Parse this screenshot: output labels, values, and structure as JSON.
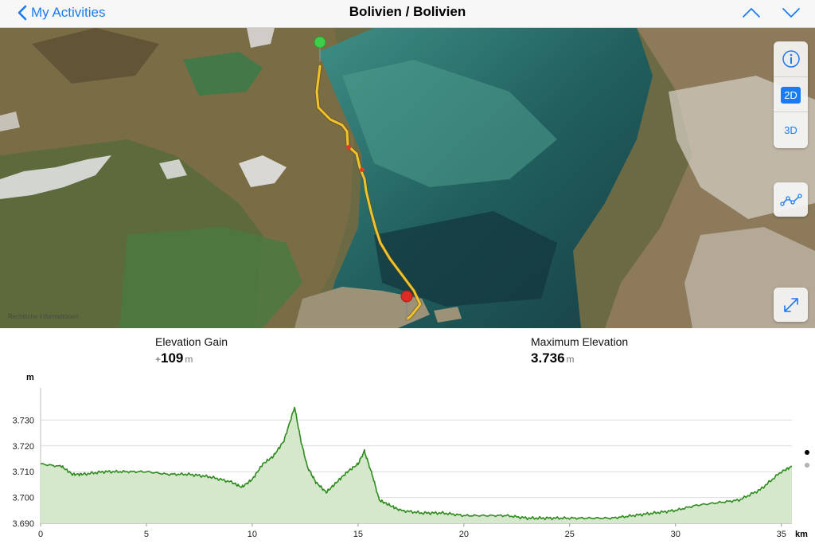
{
  "nav": {
    "back_label": "My Activities",
    "title": "Bolivien / Bolivien"
  },
  "map": {
    "legal_text": "Rechtliche Informationen",
    "buttons": {
      "info_icon": "info-icon",
      "mode_2d": "2D",
      "mode_3d": "3D",
      "profile_icon": "route-profile-icon",
      "expand_icon": "expand-icon"
    },
    "route_color": "#f2c12e",
    "start_pin_color": "#3ecf4a",
    "end_pin_color": "#e02b24"
  },
  "stats": {
    "elevation_gain": {
      "label": "Elevation Gain",
      "prefix": "+",
      "value": "109",
      "unit": "m"
    },
    "max_elevation": {
      "label": "Maximum Elevation",
      "value": "3.736",
      "unit": "m"
    }
  },
  "chart_data": {
    "type": "area",
    "title": "",
    "xlabel": "km",
    "ylabel": "m",
    "xlim": [
      0,
      35.5
    ],
    "ylim": [
      3690,
      3740
    ],
    "x_ticks": [
      "0",
      "5",
      "10",
      "15",
      "20",
      "25",
      "30",
      "35"
    ],
    "y_ticks": [
      "3.690",
      "3.700",
      "3.710",
      "3.720",
      "3.730"
    ],
    "grid": true,
    "line_color": "#2e8b1e",
    "fill_color": "#d5e8cc",
    "series": [
      {
        "x": [
          0,
          1,
          1.5,
          2,
          3,
          4,
          5,
          6,
          7,
          8,
          9,
          9.5,
          10,
          10.5,
          11,
          11.5,
          12,
          12.3,
          12.6,
          13,
          13.5,
          14,
          14.5,
          15,
          15.3,
          15.7,
          16,
          16.5,
          17,
          18,
          19,
          20,
          21,
          22,
          23,
          24,
          25,
          26,
          27,
          28,
          29,
          30,
          31,
          32,
          33,
          34,
          35,
          35.5
        ],
        "y": [
          3713,
          3712,
          3709,
          3709,
          3710,
          3710,
          3710,
          3709,
          3709,
          3708,
          3706,
          3704,
          3707,
          3713,
          3716,
          3722,
          3735,
          3722,
          3712,
          3706,
          3702,
          3706,
          3710,
          3713,
          3718,
          3708,
          3699,
          3697,
          3695,
          3694,
          3694,
          3693,
          3693,
          3693,
          3692,
          3692,
          3692,
          3692,
          3692,
          3693,
          3694,
          3695,
          3697,
          3698,
          3699,
          3703,
          3710,
          3712
        ]
      }
    ]
  },
  "page_indicator": {
    "active_color": "#000000",
    "inactive_color": "#b0b0b0"
  }
}
